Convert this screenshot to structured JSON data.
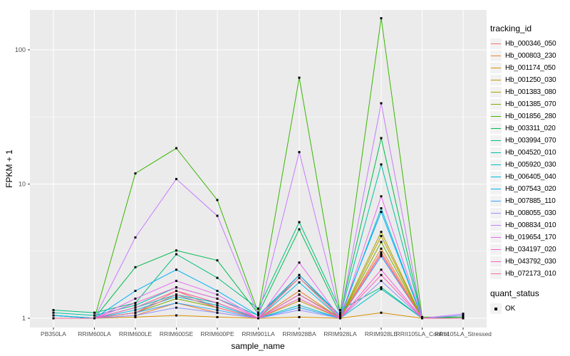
{
  "chart_data": {
    "type": "line",
    "title": "",
    "xlabel": "sample_name",
    "ylabel": "FPKM + 1",
    "y_scale": "log10",
    "y_ticks": [
      1,
      10,
      100
    ],
    "y_minor_ticks": [
      3.162,
      31.62
    ],
    "ylim": [
      0.93,
      200
    ],
    "legend_position": "right",
    "legend_title": "tracking_id",
    "quant_legend": {
      "title": "quant_status",
      "items": [
        "OK"
      ],
      "marker_color": "#000000"
    },
    "panel_bg": "#EBEBEB",
    "grid_color": "#FFFFFF",
    "axis_text_color": "#4D4D4D",
    "tick_color": "#333333",
    "point_color": "#000000",
    "legend_key_bg": "#F2F2F2",
    "categories": [
      "PB350LA",
      "RRIM600LA",
      "RRIM600LE",
      "RRIM600SE",
      "RRIM600PE",
      "RRIM901LA",
      "RRIM928BA",
      "RRIM928LA",
      "RRIM928LE",
      "RRII105LA_Control",
      "RRII105LA_Stressed"
    ],
    "series": [
      {
        "name": "Hb_000346_050",
        "color": "#F8766D",
        "values": [
          1.0,
          1.0,
          1.1,
          1.6,
          1.2,
          1.0,
          2.1,
          1.02,
          3.1,
          1.0,
          1.0
        ]
      },
      {
        "name": "Hb_000803_230",
        "color": "#EA8331",
        "values": [
          1.0,
          1.0,
          1.05,
          1.3,
          1.1,
          1.0,
          1.6,
          1.0,
          3.3,
          1.0,
          1.0
        ]
      },
      {
        "name": "Hb_001174_050",
        "color": "#D89000",
        "values": [
          1.0,
          1.0,
          1.02,
          1.05,
          1.02,
          1.0,
          1.02,
          1.0,
          1.1,
          1.0,
          1.0
        ]
      },
      {
        "name": "Hb_001250_030",
        "color": "#C09B00",
        "values": [
          1.0,
          1.0,
          1.1,
          1.5,
          1.2,
          1.0,
          1.35,
          1.0,
          4.1,
          1.0,
          1.0
        ]
      },
      {
        "name": "Hb_001383_080",
        "color": "#A3A500",
        "values": [
          1.0,
          1.0,
          1.2,
          1.6,
          1.3,
          1.0,
          1.5,
          1.02,
          4.4,
          1.0,
          1.0
        ]
      },
      {
        "name": "Hb_001385_070",
        "color": "#7CAE00",
        "values": [
          1.0,
          1.0,
          1.1,
          1.4,
          1.2,
          1.0,
          1.5,
          1.0,
          3.7,
          1.0,
          1.0
        ]
      },
      {
        "name": "Hb_001856_280",
        "color": "#39B600",
        "values": [
          1.05,
          1.0,
          12.0,
          18.5,
          7.6,
          1.1,
          62.0,
          1.1,
          172.0,
          1.02,
          1.02
        ]
      },
      {
        "name": "Hb_003311_020",
        "color": "#00BB4E",
        "values": [
          1.05,
          1.0,
          2.4,
          3.2,
          2.7,
          1.08,
          4.6,
          1.08,
          22.0,
          1.0,
          1.02
        ]
      },
      {
        "name": "Hb_003994_070",
        "color": "#00BF7D",
        "values": [
          1.15,
          1.1,
          1.3,
          3.0,
          2.0,
          1.18,
          5.2,
          1.15,
          1.7,
          1.0,
          1.05
        ]
      },
      {
        "name": "Hb_004520_010",
        "color": "#00C1A3",
        "values": [
          1.1,
          1.05,
          1.25,
          1.7,
          1.4,
          1.05,
          2.0,
          1.05,
          14.0,
          1.0,
          1.0
        ]
      },
      {
        "name": "Hb_005920_030",
        "color": "#00BFC4",
        "values": [
          1.05,
          1.0,
          1.2,
          1.5,
          1.3,
          1.0,
          1.25,
          1.0,
          1.65,
          1.0,
          1.0
        ]
      },
      {
        "name": "Hb_006405_040",
        "color": "#00BAE0",
        "values": [
          1.0,
          1.0,
          1.15,
          1.45,
          1.25,
          1.0,
          1.85,
          1.0,
          6.6,
          1.0,
          1.0
        ]
      },
      {
        "name": "Hb_007543_020",
        "color": "#00B0F6",
        "values": [
          1.05,
          1.0,
          1.6,
          2.3,
          1.6,
          1.05,
          2.1,
          1.05,
          6.2,
          1.0,
          1.0
        ]
      },
      {
        "name": "Hb_007885_110",
        "color": "#35A2FF",
        "values": [
          1.0,
          1.0,
          1.1,
          1.3,
          1.15,
          1.0,
          1.2,
          1.0,
          2.9,
          1.0,
          1.0
        ]
      },
      {
        "name": "Hb_008055_030",
        "color": "#9590FF",
        "values": [
          1.0,
          1.0,
          1.05,
          1.2,
          1.1,
          1.0,
          1.15,
          1.0,
          1.9,
          1.0,
          1.05
        ]
      },
      {
        "name": "Hb_008834_010",
        "color": "#C77CFF",
        "values": [
          1.0,
          1.0,
          4.0,
          10.9,
          5.8,
          1.05,
          17.3,
          1.05,
          40.0,
          1.0,
          1.08
        ]
      },
      {
        "name": "Hb_019654_170",
        "color": "#E76BF3",
        "values": [
          1.0,
          1.0,
          1.4,
          1.9,
          1.5,
          1.0,
          2.6,
          1.0,
          8.1,
          1.0,
          1.0
        ]
      },
      {
        "name": "Hb_034197_020",
        "color": "#FA62DB",
        "values": [
          1.0,
          1.0,
          1.3,
          1.7,
          1.4,
          1.0,
          1.5,
          1.0,
          2.3,
          1.0,
          1.0
        ]
      },
      {
        "name": "Hb_043792_030",
        "color": "#FF62BC",
        "values": [
          1.0,
          1.0,
          1.2,
          1.6,
          1.3,
          1.0,
          1.4,
          1.0,
          2.1,
          1.0,
          1.0
        ]
      },
      {
        "name": "Hb_072173_010",
        "color": "#FF6A98",
        "values": [
          1.0,
          1.0,
          1.1,
          1.5,
          1.2,
          1.0,
          2.0,
          1.0,
          3.0,
          1.0,
          1.0
        ]
      }
    ]
  }
}
